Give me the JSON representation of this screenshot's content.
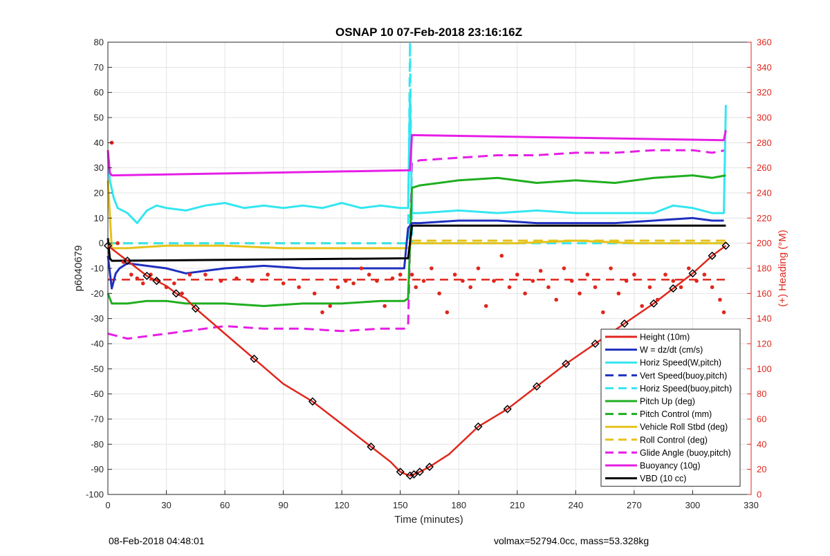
{
  "colors": {
    "height": "#e0261c",
    "w": "#1f2fbf",
    "horiz": "#33e6f0",
    "pitch": "#1fae1f",
    "roll": "#e6c21a",
    "glide": "#e61ee6",
    "buoy": "#e61ee6",
    "vbd": "#000000",
    "heading": "#e0261c",
    "grid": "#e3e3e3",
    "right_axis": "#e0261c"
  },
  "chart_data": {
    "type": "line",
    "title": "OSNAP 10 07-Feb-2018 23:16:16Z",
    "xlabel": "Time (minutes)",
    "ylabel": "p6040679",
    "y2label": "(+) Heading (°M)",
    "xlim": [
      0,
      330
    ],
    "ylim": [
      -100,
      80
    ],
    "y2lim": [
      0,
      360
    ],
    "grid": true,
    "legend_position": "bottom-right",
    "xticks": [
      0,
      30,
      60,
      90,
      120,
      150,
      180,
      210,
      240,
      270,
      300,
      330
    ],
    "yticks": [
      80,
      70,
      60,
      50,
      40,
      30,
      20,
      10,
      0,
      -10,
      -20,
      -30,
      -40,
      -50,
      -60,
      -70,
      -80,
      -90,
      -100
    ],
    "y2ticks": [
      360,
      340,
      320,
      300,
      280,
      260,
      240,
      220,
      200,
      180,
      160,
      140,
      120,
      100,
      80,
      60,
      40,
      20,
      0
    ],
    "series": [
      {
        "name": "Height (10m)",
        "key": "height",
        "style": "solid",
        "x": [
          0,
          5,
          10,
          15,
          20,
          25,
          30,
          35,
          40,
          45,
          60,
          75,
          90,
          105,
          120,
          135,
          145,
          150,
          153,
          155,
          157,
          160,
          165,
          175,
          190,
          205,
          220,
          235,
          250,
          265,
          280,
          290,
          300,
          310,
          317
        ],
        "y": [
          -1,
          -4,
          -7,
          -10,
          -13,
          -15,
          -17,
          -20,
          -22,
          -26,
          -36,
          -46,
          -56,
          -63,
          -72,
          -81,
          -87,
          -91,
          -92,
          -92.5,
          -92,
          -91,
          -89,
          -84,
          -73,
          -66,
          -57,
          -48,
          -40,
          -32,
          -24,
          -18,
          -12,
          -5,
          -1
        ]
      },
      {
        "name": "W = dz/dt (cm/s)",
        "key": "w",
        "style": "solid",
        "x": [
          0,
          2,
          4,
          6,
          10,
          20,
          30,
          40,
          50,
          60,
          80,
          100,
          120,
          140,
          152,
          154,
          156,
          160,
          180,
          200,
          220,
          240,
          260,
          280,
          300,
          310,
          316
        ],
        "y": [
          -5,
          -18,
          -12,
          -10,
          -8,
          -9,
          -10,
          -12,
          -11,
          -10,
          -9,
          -10,
          -10,
          -10,
          -10,
          6,
          8,
          8,
          9,
          9,
          8,
          8,
          8,
          9,
          10,
          9,
          9
        ]
      },
      {
        "name": "Horiz Speed(W,pitch)",
        "key": "horiz",
        "style": "solid",
        "x": [
          0,
          1,
          3,
          5,
          10,
          15,
          20,
          25,
          30,
          40,
          50,
          60,
          70,
          80,
          90,
          100,
          110,
          120,
          130,
          140,
          150,
          154,
          155,
          156,
          160,
          180,
          200,
          220,
          240,
          260,
          280,
          290,
          300,
          310,
          316,
          317
        ],
        "y": [
          35,
          25,
          18,
          14,
          12,
          8,
          13,
          15,
          14,
          13,
          15,
          16,
          14,
          15,
          14,
          15,
          14,
          16,
          14,
          15,
          14,
          14,
          60,
          12,
          12,
          13,
          12,
          13,
          12,
          12,
          12,
          15,
          14,
          12,
          12,
          55
        ]
      },
      {
        "name": "Vert Speed(buoy,pitch)",
        "key": "w",
        "style": "dashed",
        "x": [],
        "y": []
      },
      {
        "name": "Horiz Speed(buoy,pitch)",
        "key": "horiz",
        "style": "dashed",
        "x": [
          0,
          154,
          155,
          156,
          317
        ],
        "y": [
          0,
          0,
          80,
          0,
          0
        ]
      },
      {
        "name": "Pitch Up (deg)",
        "key": "pitch",
        "style": "solid",
        "x": [
          0,
          2,
          10,
          20,
          30,
          40,
          60,
          80,
          100,
          120,
          140,
          152,
          154,
          156,
          160,
          180,
          200,
          220,
          240,
          260,
          280,
          300,
          310,
          317
        ],
        "y": [
          -20,
          -24,
          -24,
          -23,
          -23,
          -24,
          -24,
          -25,
          -24,
          -24,
          -23,
          -23,
          -22,
          22,
          23,
          25,
          26,
          24,
          25,
          24,
          26,
          27,
          26,
          27
        ]
      },
      {
        "name": "Pitch Control (mm)",
        "key": "pitch",
        "style": "dashed",
        "x": [],
        "y": []
      },
      {
        "name": "Vehicle Roll Stbd (deg)",
        "key": "roll",
        "style": "solid",
        "x": [
          0,
          2,
          5,
          10,
          30,
          60,
          90,
          120,
          150,
          154,
          156,
          180,
          210,
          240,
          270,
          300,
          317
        ],
        "y": [
          25,
          -2,
          -2,
          -2,
          -1,
          -1,
          -2,
          -2,
          -2,
          -2,
          0,
          0,
          0,
          1,
          0,
          0,
          0
        ]
      },
      {
        "name": "Roll Control (deg)",
        "key": "roll",
        "style": "dashed",
        "x": [
          0,
          154,
          156,
          317
        ],
        "y": [
          0,
          0,
          1,
          1
        ]
      },
      {
        "name": "Glide Angle (buoy,pitch)",
        "key": "glide",
        "style": "dashed",
        "x": [
          0,
          5,
          10,
          20,
          30,
          40,
          60,
          80,
          100,
          120,
          140,
          152,
          154,
          156,
          160,
          180,
          200,
          220,
          240,
          260,
          280,
          300,
          310,
          317
        ],
        "y": [
          -36,
          -37,
          -38,
          -37,
          -36,
          -35,
          -33,
          -34,
          -34,
          -35,
          -34,
          -34,
          -33,
          32,
          33,
          34,
          35,
          35,
          36,
          36,
          37,
          37,
          36,
          37
        ]
      },
      {
        "name": "Buoyancy (10g)",
        "key": "buoy",
        "style": "solid",
        "x": [
          0,
          1,
          2,
          154,
          155,
          156,
          316,
          317
        ],
        "y": [
          37,
          28,
          27,
          29,
          29,
          43,
          41,
          45
        ]
      },
      {
        "name": "VBD (10 cc)",
        "key": "vbd",
        "style": "solid",
        "x": [
          0,
          1,
          2,
          154,
          155,
          156,
          317
        ],
        "y": [
          2,
          -6,
          -7,
          -6,
          0,
          7,
          7
        ]
      }
    ],
    "heading_points": [
      [
        2,
        280
      ],
      [
        5,
        200
      ],
      [
        8,
        185
      ],
      [
        12,
        175
      ],
      [
        15,
        172
      ],
      [
        18,
        168
      ],
      [
        22,
        175
      ],
      [
        26,
        170
      ],
      [
        30,
        165
      ],
      [
        34,
        168
      ],
      [
        38,
        160
      ],
      [
        42,
        175
      ],
      [
        50,
        175
      ],
      [
        58,
        170
      ],
      [
        66,
        172
      ],
      [
        74,
        170
      ],
      [
        82,
        175
      ],
      [
        90,
        168
      ],
      [
        98,
        165
      ],
      [
        106,
        160
      ],
      [
        110,
        145
      ],
      [
        114,
        150
      ],
      [
        118,
        165
      ],
      [
        122,
        170
      ],
      [
        126,
        168
      ],
      [
        130,
        180
      ],
      [
        134,
        175
      ],
      [
        138,
        170
      ],
      [
        142,
        150
      ],
      [
        146,
        172
      ],
      [
        150,
        175
      ],
      [
        156,
        175
      ],
      [
        158,
        165
      ],
      [
        162,
        170
      ],
      [
        166,
        180
      ],
      [
        170,
        160
      ],
      [
        174,
        145
      ],
      [
        178,
        175
      ],
      [
        182,
        170
      ],
      [
        186,
        165
      ],
      [
        190,
        180
      ],
      [
        194,
        150
      ],
      [
        198,
        170
      ],
      [
        202,
        190
      ],
      [
        206,
        165
      ],
      [
        210,
        175
      ],
      [
        214,
        160
      ],
      [
        218,
        170
      ],
      [
        222,
        178
      ],
      [
        226,
        165
      ],
      [
        230,
        155
      ],
      [
        234,
        180
      ],
      [
        238,
        170
      ],
      [
        242,
        160
      ],
      [
        246,
        175
      ],
      [
        250,
        165
      ],
      [
        254,
        145
      ],
      [
        258,
        180
      ],
      [
        262,
        160
      ],
      [
        266,
        170
      ],
      [
        270,
        175
      ],
      [
        274,
        150
      ],
      [
        278,
        165
      ],
      [
        282,
        155
      ],
      [
        286,
        175
      ],
      [
        290,
        170
      ],
      [
        294,
        165
      ],
      [
        298,
        180
      ],
      [
        302,
        170
      ],
      [
        306,
        175
      ],
      [
        310,
        165
      ],
      [
        314,
        155
      ],
      [
        316,
        145
      ]
    ],
    "heading_mean": 171,
    "legend_title": ""
  },
  "footer": {
    "left": "08-Feb-2018 04:48:01",
    "right": "volmax=52794.0cc, mass=53.328kg"
  }
}
